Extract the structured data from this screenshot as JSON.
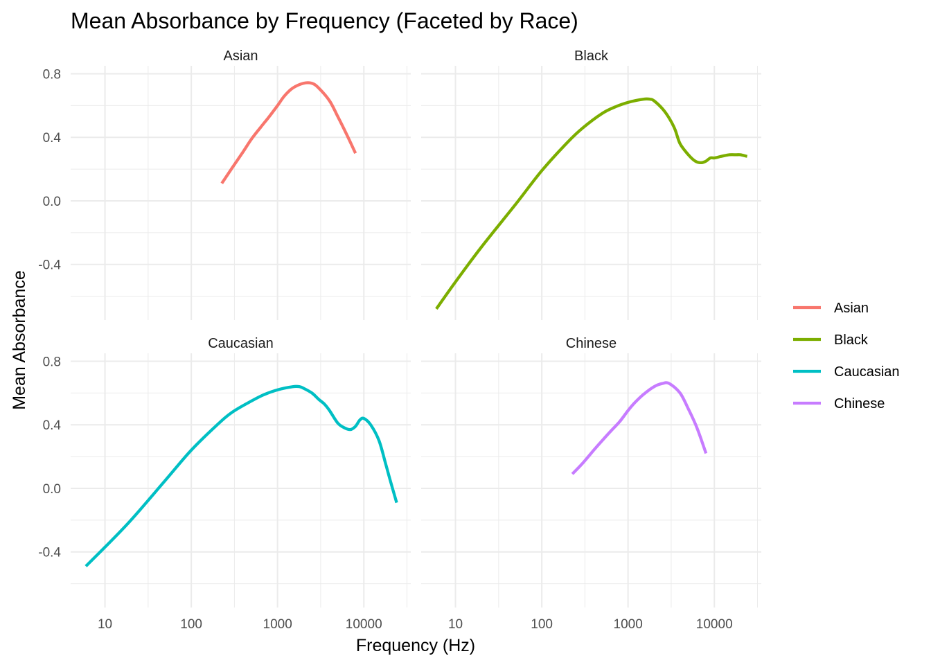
{
  "chart_data": {
    "type": "line",
    "title": "Mean Absorbance by Frequency (Faceted by Race)",
    "xlabel": "Frequency (Hz)",
    "ylabel": "Mean Absorbance",
    "x_scale": "log10",
    "xlim": [
      4,
      35000
    ],
    "ylim": [
      -0.75,
      0.85
    ],
    "x_ticks": [
      10,
      100,
      1000,
      10000
    ],
    "x_tick_labels": [
      "10",
      "100",
      "1000",
      "10000"
    ],
    "y_ticks": [
      -0.4,
      0.0,
      0.4,
      0.8
    ],
    "y_tick_labels": [
      "-0.4",
      "0.0",
      "0.4",
      "0.8"
    ],
    "grid": true,
    "legend_position": "right",
    "facets": [
      "Asian",
      "Black",
      "Caucasian",
      "Chinese"
    ],
    "series": [
      {
        "name": "Asian",
        "color": "#F8766D",
        "x": [
          226,
          300,
          400,
          500,
          630,
          800,
          1000,
          1200,
          1500,
          2000,
          2500,
          3000,
          4000,
          5000,
          6300,
          8000
        ],
        "y": [
          0.11,
          0.21,
          0.31,
          0.39,
          0.46,
          0.53,
          0.6,
          0.66,
          0.71,
          0.74,
          0.74,
          0.71,
          0.63,
          0.53,
          0.42,
          0.3
        ]
      },
      {
        "name": "Black",
        "color": "#7CAE00",
        "x": [
          6,
          10,
          20,
          50,
          100,
          200,
          300,
          500,
          700,
          1000,
          1500,
          1800,
          2000,
          2500,
          3000,
          3500,
          4000,
          5000,
          6000,
          7000,
          8000,
          9000,
          10000,
          12000,
          15000,
          18000,
          20000,
          24000
        ],
        "y": [
          -0.68,
          -0.51,
          -0.29,
          -0.02,
          0.19,
          0.37,
          0.46,
          0.55,
          0.59,
          0.62,
          0.64,
          0.64,
          0.63,
          0.58,
          0.52,
          0.45,
          0.36,
          0.29,
          0.25,
          0.24,
          0.25,
          0.27,
          0.27,
          0.28,
          0.29,
          0.29,
          0.29,
          0.28
        ]
      },
      {
        "name": "Caucasian",
        "color": "#00BFC4",
        "x": [
          6,
          10,
          20,
          50,
          100,
          200,
          300,
          500,
          700,
          1000,
          1500,
          1800,
          2000,
          2500,
          3000,
          3500,
          4000,
          5000,
          6000,
          7000,
          8000,
          9000,
          10000,
          12000,
          15000,
          18000,
          20000,
          24000
        ],
        "y": [
          -0.49,
          -0.37,
          -0.2,
          0.05,
          0.24,
          0.4,
          0.48,
          0.55,
          0.59,
          0.62,
          0.64,
          0.64,
          0.63,
          0.6,
          0.56,
          0.53,
          0.49,
          0.41,
          0.38,
          0.37,
          0.39,
          0.43,
          0.44,
          0.4,
          0.3,
          0.15,
          0.06,
          -0.09
        ]
      },
      {
        "name": "Chinese",
        "color": "#C77CFF",
        "x": [
          226,
          300,
          400,
          500,
          630,
          800,
          1000,
          1200,
          1500,
          2000,
          2500,
          3000,
          4000,
          5000,
          6300,
          8000
        ],
        "y": [
          0.09,
          0.16,
          0.24,
          0.3,
          0.36,
          0.42,
          0.49,
          0.54,
          0.59,
          0.64,
          0.66,
          0.66,
          0.6,
          0.5,
          0.38,
          0.22
        ]
      }
    ]
  }
}
